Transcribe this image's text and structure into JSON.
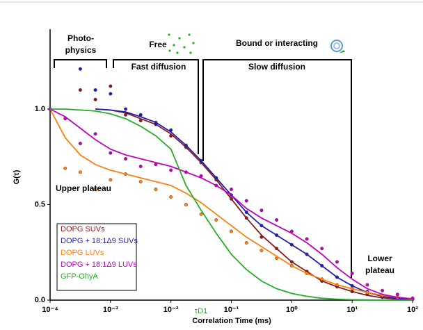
{
  "chart_data": {
    "type": "line",
    "xlabel": "Correlation Time (ms)",
    "ylabel": "G(τ)",
    "log_x": true,
    "xlim": [
      0.0001,
      100
    ],
    "ylim": [
      0,
      1.4
    ],
    "xticks": [
      {
        "value": 0.0001,
        "label": "10⁻⁴"
      },
      {
        "value": 0.001,
        "label": "10⁻³"
      },
      {
        "value": 0.01,
        "label": "10⁻²"
      },
      {
        "value": 0.1,
        "label": "10⁻¹"
      },
      {
        "value": 1,
        "label": "10⁰"
      },
      {
        "value": 10,
        "label": "10¹"
      },
      {
        "value": 100,
        "label": "10²"
      }
    ],
    "yticks": [
      {
        "value": 0,
        "label": "0.0"
      },
      {
        "value": 0.5,
        "label": "0.5"
      },
      {
        "value": 1,
        "label": "1.0"
      }
    ],
    "x": [
      0.0001,
      0.000178,
      0.000316,
      0.000562,
      0.001,
      0.00178,
      0.00316,
      0.00562,
      0.01,
      0.0178,
      0.0316,
      0.0562,
      0.1,
      0.178,
      0.316,
      0.562,
      1,
      1.78,
      3.16,
      5.62,
      10,
      17.8,
      31.6,
      56.2,
      100
    ],
    "series": [
      {
        "name": "DOPG SUVs",
        "color": "#8b1a1a",
        "fit": [
          null,
          null,
          null,
          1.0,
          0.995,
          0.98,
          0.95,
          0.92,
          0.87,
          0.8,
          0.72,
          0.63,
          0.53,
          0.43,
          0.34,
          0.27,
          0.2,
          0.15,
          0.1,
          0.07,
          0.045,
          0.025,
          0.012,
          0.005,
          0.002
        ],
        "points": [
          null,
          null,
          1.1,
          1.05,
          1.12,
          0.97,
          0.94,
          0.93,
          0.86,
          0.8,
          0.72,
          0.63,
          0.53,
          0.43,
          0.33,
          0.27,
          0.2,
          0.15,
          0.1,
          0.07,
          0.045,
          0.03,
          0.015,
          0.01,
          0.005
        ]
      },
      {
        "name": "DOPG + 18:1Δ9 SUVs",
        "color": "#1f1fb4",
        "fit": [
          null,
          null,
          null,
          1.0,
          0.995,
          0.985,
          0.96,
          0.93,
          0.88,
          0.81,
          0.73,
          0.64,
          0.55,
          0.46,
          0.39,
          0.34,
          0.29,
          0.24,
          0.18,
          0.12,
          0.075,
          0.04,
          0.02,
          0.008,
          0.003
        ],
        "points": [
          null,
          null,
          1.21,
          1.1,
          1.08,
          1.0,
          0.97,
          0.92,
          0.89,
          0.81,
          0.73,
          0.64,
          0.55,
          0.46,
          0.39,
          0.34,
          0.29,
          0.24,
          0.18,
          0.12,
          0.075,
          0.045,
          0.02,
          0.01,
          0.004
        ]
      },
      {
        "name": "DOPG LUVs",
        "color": "#ff7f0e",
        "fit": [
          1.0,
          0.85,
          0.76,
          0.71,
          0.68,
          0.66,
          0.64,
          0.62,
          0.6,
          0.56,
          0.51,
          0.45,
          0.39,
          0.33,
          0.28,
          0.23,
          0.18,
          0.14,
          0.11,
          0.08,
          0.06,
          0.04,
          0.025,
          0.015,
          0.008
        ],
        "points": [
          1.0,
          0.69,
          0.67,
          0.58,
          0.63,
          0.66,
          0.62,
          0.58,
          0.54,
          0.5,
          0.45,
          0.42,
          0.36,
          0.3,
          0.26,
          0.22,
          0.18,
          0.14,
          0.11,
          0.08,
          0.06,
          0.04,
          0.025,
          0.015,
          0.008
        ]
      },
      {
        "name": "DOPG + 18:1Δ9 LUVs",
        "color": "#c000c0",
        "fit": [
          1.0,
          0.96,
          0.9,
          0.84,
          0.79,
          0.76,
          0.74,
          0.72,
          0.7,
          0.67,
          0.64,
          0.6,
          0.55,
          0.48,
          0.43,
          0.39,
          0.35,
          0.3,
          0.24,
          0.17,
          0.11,
          0.06,
          0.03,
          0.015,
          0.005
        ],
        "points": [
          1.0,
          0.95,
          0.82,
          0.87,
          0.77,
          0.74,
          0.7,
          0.71,
          0.68,
          0.67,
          0.65,
          0.6,
          0.58,
          0.52,
          0.47,
          0.42,
          0.36,
          0.32,
          0.27,
          0.2,
          0.14,
          0.08,
          0.05,
          0.03,
          0.01
        ]
      },
      {
        "name": "GFP-OhyA",
        "color": "#22b022",
        "fit": [
          1.0,
          1.0,
          0.995,
          0.99,
          0.975,
          0.95,
          0.91,
          0.86,
          0.79,
          0.6,
          0.47,
          0.35,
          0.24,
          0.16,
          0.1,
          0.06,
          0.035,
          0.02,
          0.01,
          0.005,
          0.002,
          0.001,
          0,
          0,
          0
        ]
      }
    ],
    "annotations": [
      "Photo-",
      "physics",
      "Free",
      "Fast diffusion",
      "Bound or interacting",
      "Slow diffusion",
      "Upper plateau",
      "Lower",
      "plateau",
      "τD1"
    ]
  }
}
